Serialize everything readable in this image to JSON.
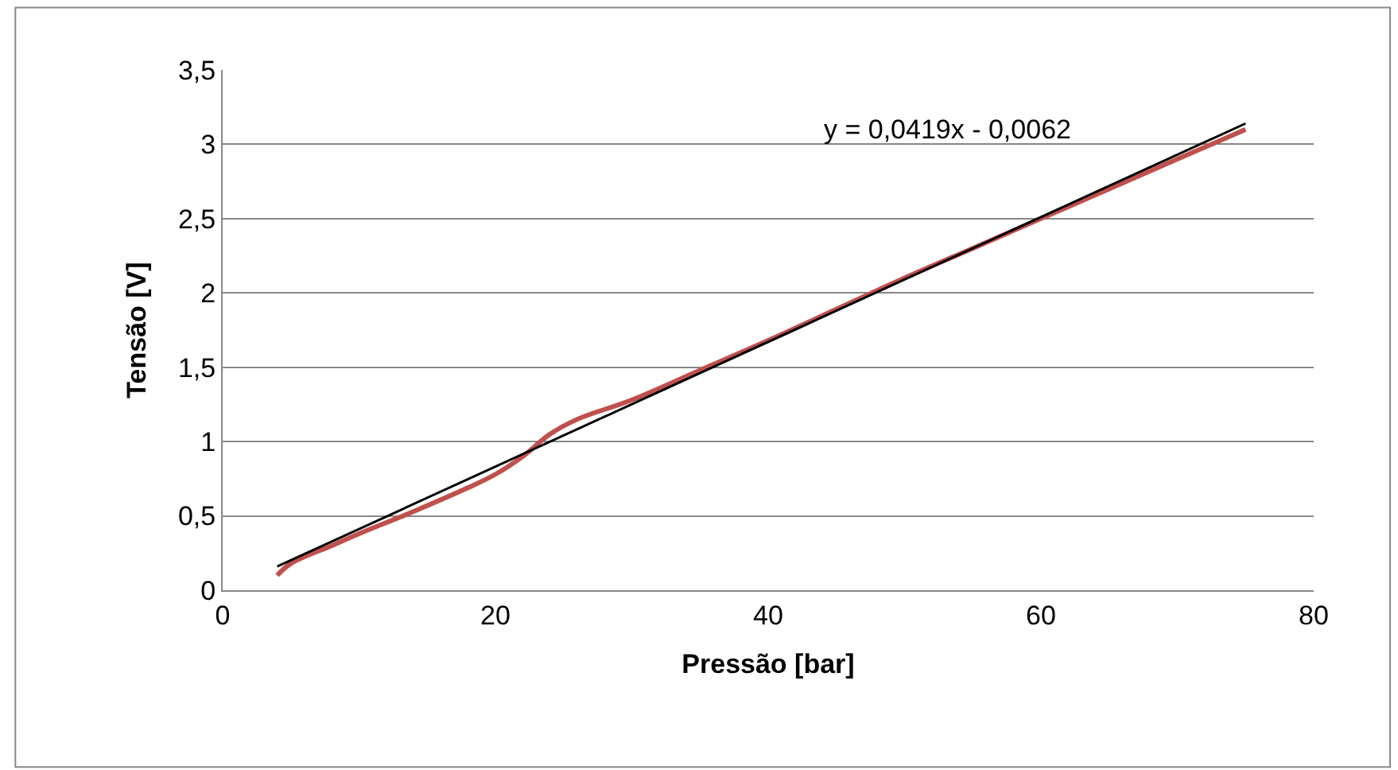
{
  "chart_data": {
    "type": "line",
    "xlabel": "Pressão [bar]",
    "ylabel": "Tensão [V]",
    "xlim": [
      0,
      80
    ],
    "xticks": [
      0,
      20,
      40,
      60,
      80
    ],
    "ylim": [
      0,
      3.5
    ],
    "yticks": [
      0,
      {
        "value": 0.5,
        "label": "0,5"
      },
      1,
      {
        "value": 1.5,
        "label": "1,5"
      },
      2,
      {
        "value": 2.5,
        "label": "2,5"
      },
      3,
      {
        "value": 3.5,
        "label": "3,5"
      }
    ],
    "grid": "y",
    "legend": false,
    "series": [
      {
        "color": "#c0504d",
        "x": [
          4,
          5,
          8,
          10,
          14,
          18,
          20,
          22,
          24,
          26,
          30,
          35,
          40,
          45,
          50,
          55,
          60,
          65,
          70,
          75
        ],
        "values": [
          0.1,
          0.18,
          0.3,
          0.38,
          0.53,
          0.69,
          0.78,
          0.9,
          1.05,
          1.15,
          1.28,
          1.48,
          1.68,
          1.89,
          2.1,
          2.3,
          2.5,
          2.7,
          2.9,
          3.1
        ]
      },
      {
        "color": "#000000",
        "x": [
          4,
          75
        ],
        "values": [
          0.16,
          3.14
        ]
      }
    ],
    "annotations": [
      "y = 0,0419x - 0,0062"
    ]
  }
}
